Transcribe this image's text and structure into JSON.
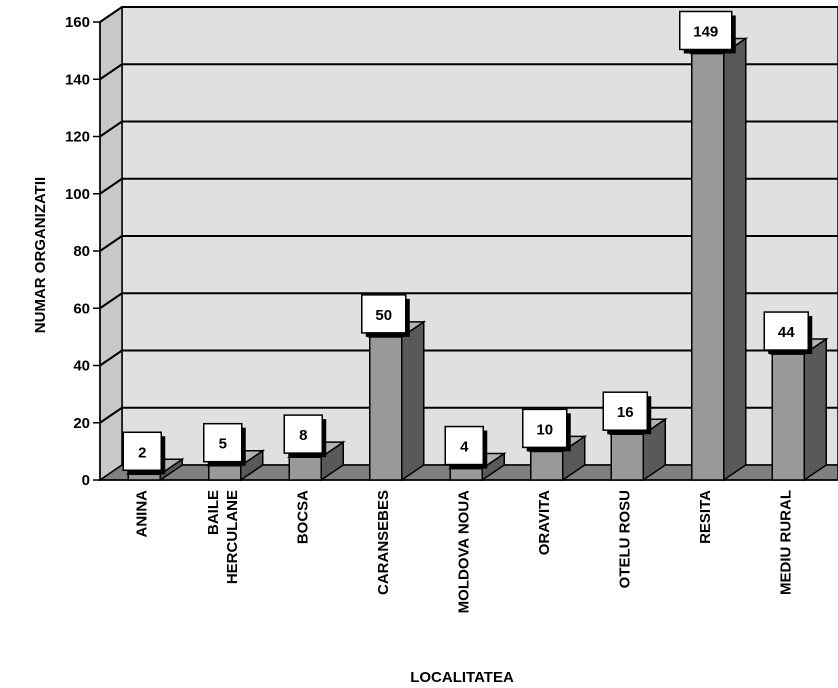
{
  "chart_data": {
    "type": "bar",
    "title": "",
    "xlabel": "LOCALITATEA",
    "ylabel": "NUMAR ORGANIZATII",
    "ylim": [
      0,
      160
    ],
    "yticks": [
      0,
      20,
      40,
      60,
      80,
      100,
      120,
      140,
      160
    ],
    "grid": true,
    "categories": [
      [
        "ANINA"
      ],
      [
        "BAILE",
        "HERCULANE"
      ],
      [
        "BOCSA"
      ],
      [
        "CARANSEBES"
      ],
      [
        "MOLDOVA NOUA"
      ],
      [
        "ORAVITA"
      ],
      [
        "OTELU ROSU"
      ],
      [
        "RESITA"
      ],
      [
        "MEDIU RURAL"
      ]
    ],
    "values": [
      2,
      5,
      8,
      50,
      4,
      10,
      16,
      149,
      44
    ],
    "colors": {
      "wall": "#e0e0e0",
      "floor": "#808080",
      "bar_front": "#999999",
      "bar_side": "#595959",
      "bar_top": "#b3b3b3",
      "label_box": "#ffffff"
    }
  }
}
